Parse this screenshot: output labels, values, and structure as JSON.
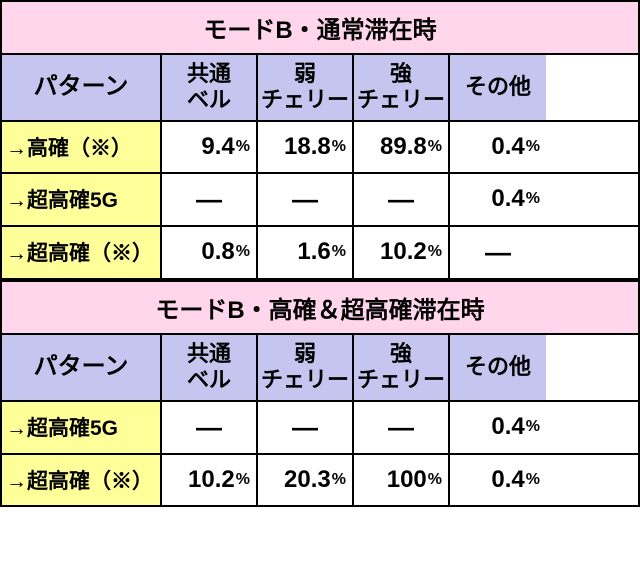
{
  "colors": {
    "title_bg": "#ffd6eb",
    "header_bg": "#c5c5ef",
    "label_bg": "#ffff99",
    "border": "#000000",
    "text": "#000000",
    "bg": "#ffffff"
  },
  "sections": [
    {
      "title": "モードB・通常滞在時",
      "columns": {
        "pattern": "パターン",
        "col1_line1": "共通",
        "col1_line2": "ベル",
        "col2_line1": "弱",
        "col2_line2": "チェリー",
        "col3_line1": "強",
        "col3_line2": "チェリー",
        "col4": "その他"
      },
      "rows": [
        {
          "label": "→高確（※）",
          "c1": "9.4",
          "c2": "18.8",
          "c3": "89.8",
          "c4": "0.4"
        },
        {
          "label": "→超高確5G",
          "c1": "—",
          "c2": "—",
          "c3": "—",
          "c4": "0.4"
        },
        {
          "label": "→超高確（※）",
          "c1": "0.8",
          "c2": "1.6",
          "c3": "10.2",
          "c4": "—"
        }
      ]
    },
    {
      "title": "モードB・高確＆超高確滞在時",
      "columns": {
        "pattern": "パターン",
        "col1_line1": "共通",
        "col1_line2": "ベル",
        "col2_line1": "弱",
        "col2_line2": "チェリー",
        "col3_line1": "強",
        "col3_line2": "チェリー",
        "col4": "その他"
      },
      "rows": [
        {
          "label": "→超高確5G",
          "c1": "—",
          "c2": "—",
          "c3": "—",
          "c4": "0.4"
        },
        {
          "label": "→超高確（※）",
          "c1": "10.2",
          "c2": "20.3",
          "c3": "100",
          "c4": "0.4"
        }
      ]
    }
  ],
  "pct": "%",
  "dash": "—"
}
